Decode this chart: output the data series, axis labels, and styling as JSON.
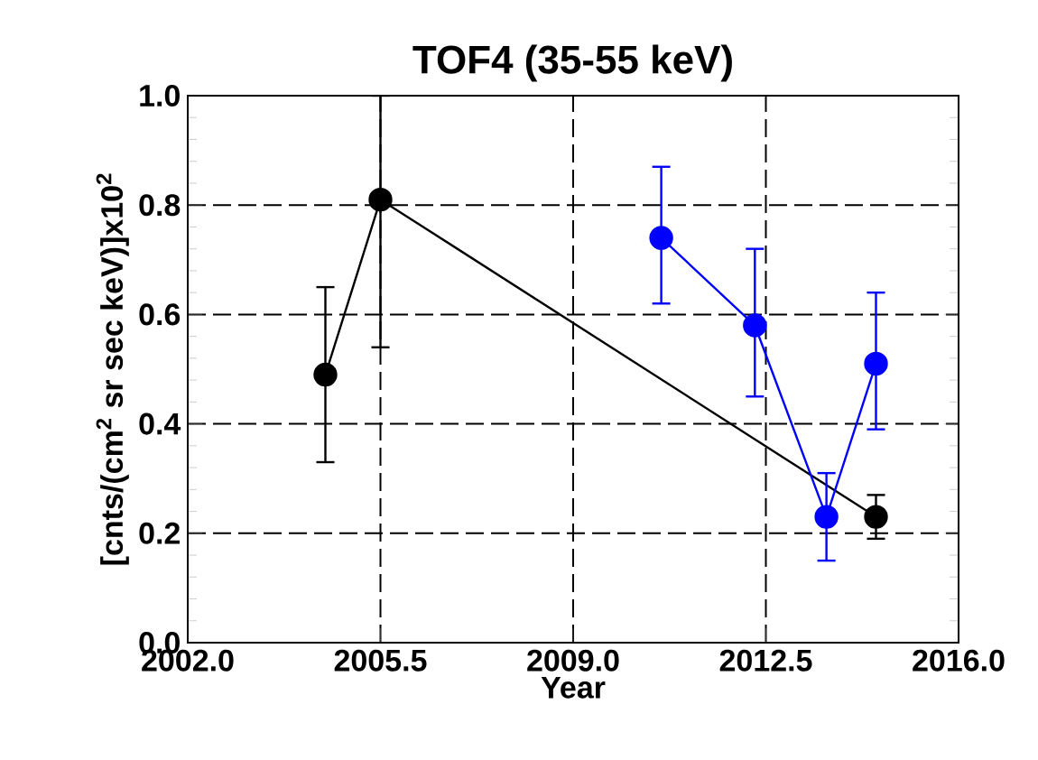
{
  "chart_data": {
    "type": "line",
    "title": "TOF4 (35-55 keV)",
    "xlabel": "Year",
    "ylabel": "[cnts/(cm$^{2}$ sr sec keV)]x10$^{2}$",
    "xlim": [
      2002.0,
      2016.0
    ],
    "xticks": [
      {
        "value": 2002.0,
        "label": "2002.0"
      },
      {
        "value": 2005.5,
        "label": "2005.5"
      },
      {
        "value": 2009.0,
        "label": "2009.0"
      },
      {
        "value": 2012.5,
        "label": "2012.5"
      },
      {
        "value": 2016.0,
        "label": "2016.0"
      }
    ],
    "ylim": [
      0,
      1.0
    ],
    "yticks": [
      {
        "value": 0,
        "label": "0.0"
      },
      {
        "value": 0.2,
        "label": "0.2"
      },
      {
        "value": 0.4,
        "label": "0.4"
      },
      {
        "value": 0.6,
        "label": "0.6"
      },
      {
        "value": 0.8,
        "label": "0.8"
      },
      {
        "value": 1.0,
        "label": "1.0"
      }
    ],
    "grid": true,
    "marker": "circle",
    "line_style": "solid",
    "series": [
      {
        "color": "#000000",
        "x": [
          2004.5,
          2005.5,
          2014.5
        ],
        "values": [
          0.49,
          0.81,
          0.23
        ],
        "errors": [
          [
            0.33,
            0.65
          ],
          [
            0.54,
            1.0
          ],
          [
            0.19,
            0.27
          ]
        ]
      },
      {
        "color": "#0000ff",
        "x": [
          2010.6,
          2012.3,
          2013.6,
          2014.5
        ],
        "values": [
          0.74,
          0.58,
          0.23,
          0.51
        ],
        "errors": [
          [
            0.62,
            0.87
          ],
          [
            0.45,
            0.72
          ],
          [
            0.15,
            0.31
          ],
          [
            0.39,
            0.64
          ]
        ]
      }
    ]
  }
}
